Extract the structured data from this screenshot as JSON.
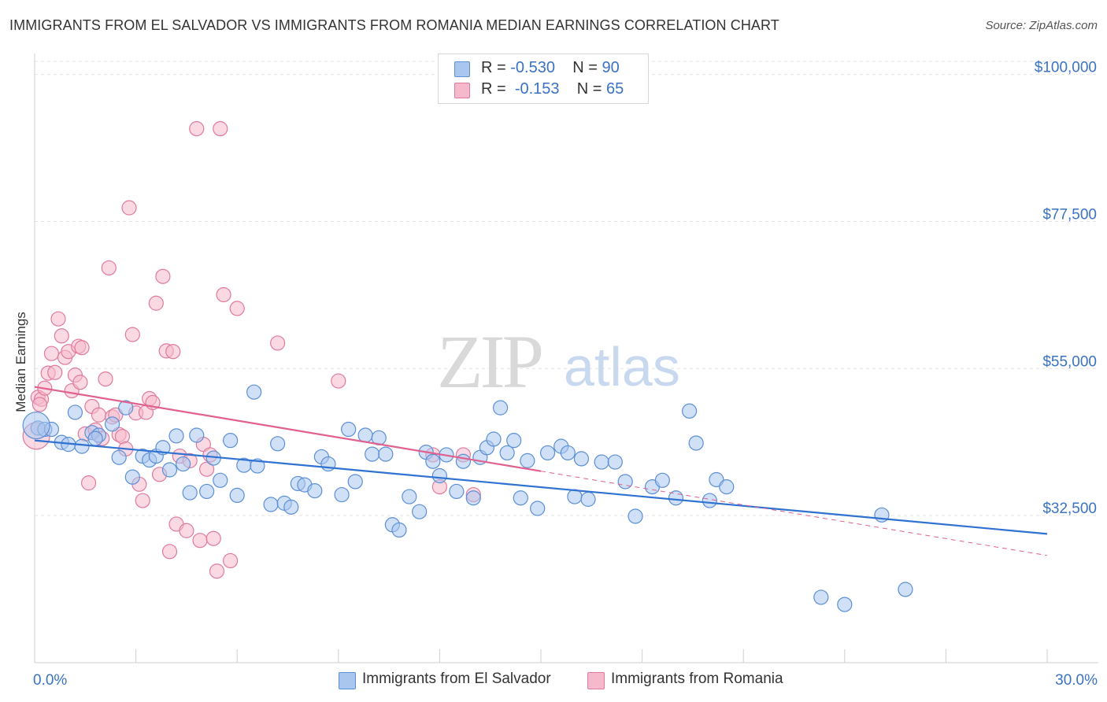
{
  "title": "IMMIGRANTS FROM EL SALVADOR VS IMMIGRANTS FROM ROMANIA MEDIAN EARNINGS CORRELATION CHART",
  "source": "Source: ZipAtlas.com",
  "watermark": {
    "zip": "ZIP",
    "atlas": "atlas"
  },
  "legend_top": {
    "row1": {
      "r_label": "R = ",
      "r_value": "-0.530",
      "n_label": "N = ",
      "n_value": "90"
    },
    "row2": {
      "r_label": "R = ",
      "r_value": "-0.153",
      "n_label": "N = ",
      "n_value": "65"
    }
  },
  "colors": {
    "blue": "#5b8fd6",
    "blue_fill": "#a9c6ee",
    "blue_line": "#2f72d1",
    "pink": "#e07a9c",
    "pink_fill": "#f6b9cc",
    "pink_line": "#e0608f",
    "axis_text": "#3a72c4",
    "grid": "#e3e3e3"
  },
  "chart_data": {
    "type": "scatter",
    "title": "IMMIGRANTS FROM EL SALVADOR VS IMMIGRANTS FROM ROMANIA MEDIAN EARNINGS CORRELATION CHART",
    "xlabel": "",
    "ylabel": "Median Earnings",
    "xlim": [
      0,
      30
    ],
    "ylim": [
      10000,
      102000
    ],
    "x_tick_labels": [
      "0.0%",
      "30.0%"
    ],
    "y_ticks": [
      32500,
      55000,
      77500,
      100000
    ],
    "y_tick_labels": [
      "$32,500",
      "$55,000",
      "$77,500",
      "$100,000"
    ],
    "grid": true,
    "legend_position": "bottom",
    "series": [
      {
        "name": "Immigrants from El Salvador",
        "color": "#5b8fd6",
        "trend": {
          "x": [
            0,
            30
          ],
          "y": [
            44000,
            29700
          ]
        },
        "points": [
          [
            0.1,
            45900
          ],
          [
            0.3,
            45700
          ],
          [
            0.5,
            45700
          ],
          [
            0.8,
            43700
          ],
          [
            1.0,
            43400
          ],
          [
            1.2,
            48300
          ],
          [
            1.4,
            43100
          ],
          [
            1.7,
            45200
          ],
          [
            1.9,
            44800
          ],
          [
            2.3,
            46500
          ],
          [
            2.5,
            41400
          ],
          [
            2.7,
            49000
          ],
          [
            2.9,
            38400
          ],
          [
            3.2,
            41600
          ],
          [
            3.4,
            41000
          ],
          [
            3.6,
            41600
          ],
          [
            3.8,
            42900
          ],
          [
            4.0,
            39500
          ],
          [
            4.2,
            44700
          ],
          [
            4.4,
            40400
          ],
          [
            4.6,
            36000
          ],
          [
            4.8,
            44800
          ],
          [
            5.1,
            36200
          ],
          [
            5.3,
            41300
          ],
          [
            5.5,
            37900
          ],
          [
            5.8,
            44000
          ],
          [
            6.0,
            35600
          ],
          [
            6.2,
            40200
          ],
          [
            6.5,
            51400
          ],
          [
            6.6,
            40100
          ],
          [
            7.0,
            34200
          ],
          [
            7.2,
            43500
          ],
          [
            7.4,
            34400
          ],
          [
            7.6,
            33800
          ],
          [
            7.8,
            37400
          ],
          [
            8.0,
            37200
          ],
          [
            8.3,
            36300
          ],
          [
            8.5,
            41500
          ],
          [
            8.7,
            40400
          ],
          [
            9.1,
            35700
          ],
          [
            9.3,
            45700
          ],
          [
            9.5,
            37700
          ],
          [
            9.8,
            44800
          ],
          [
            10.0,
            41900
          ],
          [
            10.2,
            44400
          ],
          [
            10.4,
            41900
          ],
          [
            10.6,
            31100
          ],
          [
            10.8,
            30300
          ],
          [
            11.1,
            35400
          ],
          [
            11.4,
            33100
          ],
          [
            11.6,
            42200
          ],
          [
            11.8,
            40800
          ],
          [
            12.0,
            38600
          ],
          [
            12.2,
            41800
          ],
          [
            12.5,
            36200
          ],
          [
            12.7,
            40800
          ],
          [
            13.0,
            35200
          ],
          [
            13.2,
            41400
          ],
          [
            13.4,
            42900
          ],
          [
            13.6,
            44200
          ],
          [
            13.8,
            49000
          ],
          [
            14.0,
            42100
          ],
          [
            14.2,
            44000
          ],
          [
            14.4,
            35200
          ],
          [
            14.6,
            40900
          ],
          [
            14.9,
            33600
          ],
          [
            15.2,
            42100
          ],
          [
            15.6,
            43100
          ],
          [
            15.8,
            42100
          ],
          [
            16.0,
            35400
          ],
          [
            16.2,
            41200
          ],
          [
            16.4,
            35000
          ],
          [
            16.8,
            40700
          ],
          [
            17.2,
            40700
          ],
          [
            17.5,
            37700
          ],
          [
            17.8,
            32400
          ],
          [
            18.3,
            36900
          ],
          [
            18.6,
            37900
          ],
          [
            19.0,
            35200
          ],
          [
            19.4,
            48500
          ],
          [
            19.6,
            43600
          ],
          [
            20.0,
            34800
          ],
          [
            20.2,
            38000
          ],
          [
            20.5,
            36900
          ],
          [
            23.3,
            20000
          ],
          [
            24.0,
            18900
          ],
          [
            25.1,
            32600
          ],
          [
            25.8,
            21200
          ],
          [
            0.05,
            46300
          ],
          [
            1.8,
            44300
          ]
        ]
      },
      {
        "name": "Immigrants from Romania",
        "color": "#e07a9c",
        "trend": {
          "x": [
            0,
            15
          ],
          "y": [
            52200,
            39300
          ]
        },
        "trend_dashed": {
          "x": [
            15,
            30
          ],
          "y": [
            39300,
            26400
          ]
        },
        "points": [
          [
            0.05,
            44700
          ],
          [
            0.1,
            50600
          ],
          [
            0.2,
            50300
          ],
          [
            0.3,
            52000
          ],
          [
            0.4,
            54300
          ],
          [
            0.5,
            57300
          ],
          [
            0.6,
            54400
          ],
          [
            0.7,
            62600
          ],
          [
            0.8,
            60000
          ],
          [
            0.9,
            56700
          ],
          [
            1.0,
            57600
          ],
          [
            1.1,
            51600
          ],
          [
            1.2,
            54000
          ],
          [
            1.3,
            58400
          ],
          [
            1.4,
            58200
          ],
          [
            1.5,
            45000
          ],
          [
            1.6,
            37500
          ],
          [
            1.7,
            49200
          ],
          [
            1.8,
            45600
          ],
          [
            1.9,
            47900
          ],
          [
            2.0,
            44300
          ],
          [
            2.1,
            53400
          ],
          [
            2.2,
            70400
          ],
          [
            2.3,
            47600
          ],
          [
            2.4,
            47900
          ],
          [
            2.5,
            44900
          ],
          [
            2.6,
            44600
          ],
          [
            2.7,
            42700
          ],
          [
            2.8,
            79600
          ],
          [
            2.9,
            60200
          ],
          [
            3.0,
            48200
          ],
          [
            3.1,
            37300
          ],
          [
            3.2,
            34800
          ],
          [
            3.3,
            48300
          ],
          [
            3.4,
            50400
          ],
          [
            3.5,
            49800
          ],
          [
            3.6,
            65000
          ],
          [
            3.7,
            38800
          ],
          [
            3.8,
            69100
          ],
          [
            3.9,
            57700
          ],
          [
            4.0,
            27000
          ],
          [
            4.1,
            57600
          ],
          [
            4.2,
            31200
          ],
          [
            4.3,
            41600
          ],
          [
            4.5,
            30200
          ],
          [
            4.6,
            40900
          ],
          [
            4.8,
            91700
          ],
          [
            4.9,
            28700
          ],
          [
            5.0,
            43400
          ],
          [
            5.1,
            39600
          ],
          [
            5.2,
            41800
          ],
          [
            5.3,
            29000
          ],
          [
            5.4,
            24000
          ],
          [
            5.5,
            91700
          ],
          [
            5.6,
            66300
          ],
          [
            5.8,
            25600
          ],
          [
            6.0,
            64200
          ],
          [
            7.2,
            58900
          ],
          [
            9.0,
            53100
          ],
          [
            11.8,
            41800
          ],
          [
            12.0,
            36900
          ],
          [
            12.7,
            41800
          ],
          [
            13.0,
            35700
          ],
          [
            0.15,
            49500
          ],
          [
            1.35,
            52900
          ]
        ]
      }
    ]
  },
  "bottom_legend": {
    "series1": "Immigrants from El Salvador",
    "series2": "Immigrants from Romania"
  }
}
